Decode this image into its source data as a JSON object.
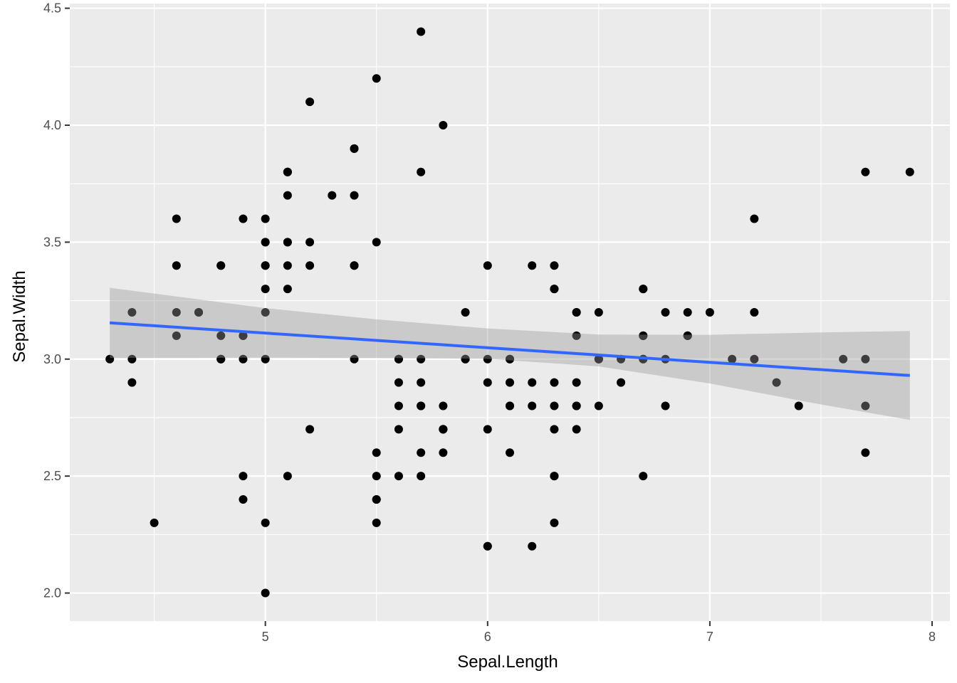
{
  "chart_data": {
    "type": "scatter",
    "title": "",
    "xlabel": "Sepal.Length",
    "ylabel": "Sepal.Width",
    "xlim": [
      4.12,
      8.08
    ],
    "ylim": [
      1.88,
      4.52
    ],
    "x_ticks": [
      5,
      6,
      7,
      8
    ],
    "x_tick_labels": [
      "5",
      "6",
      "7",
      "8"
    ],
    "y_ticks": [
      2.0,
      2.5,
      3.0,
      3.5,
      4.0,
      4.5
    ],
    "y_tick_labels": [
      "2.0",
      "2.5",
      "3.0",
      "3.5",
      "4.0",
      "4.5"
    ],
    "grid": true,
    "legend": "none",
    "colors": {
      "panel": "#ebebeb",
      "grid": "#ffffff",
      "points": "#000000",
      "fit_line": "#3366ff",
      "confidence_band": "#999999"
    },
    "points": [
      [
        5.1,
        3.5
      ],
      [
        4.9,
        3.0
      ],
      [
        4.7,
        3.2
      ],
      [
        4.6,
        3.1
      ],
      [
        5.0,
        3.6
      ],
      [
        5.4,
        3.9
      ],
      [
        4.6,
        3.4
      ],
      [
        5.0,
        3.4
      ],
      [
        4.4,
        2.9
      ],
      [
        4.9,
        3.1
      ],
      [
        5.4,
        3.7
      ],
      [
        4.8,
        3.4
      ],
      [
        4.8,
        3.0
      ],
      [
        4.3,
        3.0
      ],
      [
        5.8,
        4.0
      ],
      [
        5.7,
        4.4
      ],
      [
        5.4,
        3.9
      ],
      [
        5.1,
        3.5
      ],
      [
        5.7,
        3.8
      ],
      [
        5.1,
        3.8
      ],
      [
        5.4,
        3.4
      ],
      [
        5.1,
        3.7
      ],
      [
        4.6,
        3.6
      ],
      [
        5.1,
        3.3
      ],
      [
        4.8,
        3.4
      ],
      [
        5.0,
        3.0
      ],
      [
        5.0,
        3.4
      ],
      [
        5.2,
        3.5
      ],
      [
        5.2,
        3.4
      ],
      [
        4.7,
        3.2
      ],
      [
        4.8,
        3.1
      ],
      [
        5.4,
        3.4
      ],
      [
        5.2,
        4.1
      ],
      [
        5.5,
        4.2
      ],
      [
        4.9,
        3.1
      ],
      [
        5.0,
        3.2
      ],
      [
        5.5,
        3.5
      ],
      [
        4.9,
        3.6
      ],
      [
        4.4,
        3.0
      ],
      [
        5.1,
        3.4
      ],
      [
        5.0,
        3.5
      ],
      [
        4.5,
        2.3
      ],
      [
        4.4,
        3.2
      ],
      [
        5.0,
        3.5
      ],
      [
        5.1,
        3.8
      ],
      [
        4.8,
        3.0
      ],
      [
        5.1,
        3.8
      ],
      [
        4.6,
        3.2
      ],
      [
        5.3,
        3.7
      ],
      [
        5.0,
        3.3
      ],
      [
        7.0,
        3.2
      ],
      [
        6.4,
        3.2
      ],
      [
        6.9,
        3.1
      ],
      [
        5.5,
        2.3
      ],
      [
        6.5,
        2.8
      ],
      [
        5.7,
        2.8
      ],
      [
        6.3,
        3.3
      ],
      [
        4.9,
        2.4
      ],
      [
        6.6,
        2.9
      ],
      [
        5.2,
        2.7
      ],
      [
        5.0,
        2.0
      ],
      [
        5.9,
        3.0
      ],
      [
        6.0,
        2.2
      ],
      [
        6.1,
        2.9
      ],
      [
        5.6,
        2.9
      ],
      [
        6.7,
        3.1
      ],
      [
        5.6,
        3.0
      ],
      [
        5.8,
        2.7
      ],
      [
        6.2,
        2.2
      ],
      [
        5.6,
        2.5
      ],
      [
        5.9,
        3.2
      ],
      [
        6.1,
        2.8
      ],
      [
        6.3,
        2.5
      ],
      [
        6.1,
        2.8
      ],
      [
        6.4,
        2.9
      ],
      [
        6.6,
        3.0
      ],
      [
        6.8,
        2.8
      ],
      [
        6.7,
        3.0
      ],
      [
        6.0,
        2.9
      ],
      [
        5.7,
        2.6
      ],
      [
        5.5,
        2.4
      ],
      [
        5.5,
        2.4
      ],
      [
        5.8,
        2.7
      ],
      [
        6.0,
        2.7
      ],
      [
        5.4,
        3.0
      ],
      [
        6.0,
        3.4
      ],
      [
        6.7,
        3.1
      ],
      [
        6.3,
        2.3
      ],
      [
        5.6,
        3.0
      ],
      [
        5.5,
        2.5
      ],
      [
        5.5,
        2.6
      ],
      [
        6.1,
        3.0
      ],
      [
        5.8,
        2.6
      ],
      [
        5.0,
        2.3
      ],
      [
        5.6,
        2.7
      ],
      [
        5.7,
        3.0
      ],
      [
        5.7,
        2.9
      ],
      [
        6.2,
        2.9
      ],
      [
        5.1,
        2.5
      ],
      [
        5.7,
        2.8
      ],
      [
        6.3,
        3.3
      ],
      [
        5.8,
        2.7
      ],
      [
        7.1,
        3.0
      ],
      [
        6.3,
        2.9
      ],
      [
        6.5,
        3.0
      ],
      [
        7.6,
        3.0
      ],
      [
        4.9,
        2.5
      ],
      [
        7.3,
        2.9
      ],
      [
        6.7,
        2.5
      ],
      [
        7.2,
        3.6
      ],
      [
        6.5,
        3.2
      ],
      [
        6.4,
        2.7
      ],
      [
        6.8,
        3.0
      ],
      [
        5.7,
        2.5
      ],
      [
        5.8,
        2.8
      ],
      [
        6.4,
        3.2
      ],
      [
        6.5,
        3.0
      ],
      [
        7.7,
        3.8
      ],
      [
        7.7,
        2.6
      ],
      [
        6.0,
        2.2
      ],
      [
        6.9,
        3.2
      ],
      [
        5.6,
        2.8
      ],
      [
        7.7,
        2.8
      ],
      [
        6.3,
        2.7
      ],
      [
        6.7,
        3.3
      ],
      [
        7.2,
        3.2
      ],
      [
        6.2,
        2.8
      ],
      [
        6.1,
        3.0
      ],
      [
        6.4,
        2.8
      ],
      [
        7.2,
        3.0
      ],
      [
        7.4,
        2.8
      ],
      [
        7.9,
        3.8
      ],
      [
        6.4,
        2.8
      ],
      [
        6.3,
        2.8
      ],
      [
        6.1,
        2.6
      ],
      [
        7.7,
        3.0
      ],
      [
        6.3,
        3.4
      ],
      [
        6.4,
        3.1
      ],
      [
        6.0,
        3.0
      ],
      [
        6.9,
        3.1
      ],
      [
        6.7,
        3.1
      ],
      [
        6.9,
        3.1
      ],
      [
        5.8,
        2.7
      ],
      [
        6.8,
        3.2
      ],
      [
        6.7,
        3.3
      ],
      [
        6.7,
        3.0
      ],
      [
        6.3,
        2.5
      ],
      [
        6.5,
        3.0
      ],
      [
        6.2,
        3.4
      ],
      [
        5.9,
        3.0
      ]
    ],
    "fit_line": {
      "x": [
        4.3,
        7.9
      ],
      "y": [
        3.155,
        2.93
      ]
    },
    "confidence_band": {
      "x": [
        4.3,
        5.0,
        5.5,
        6.0,
        6.5,
        7.0,
        7.5,
        7.9
      ],
      "upper": [
        3.305,
        3.218,
        3.17,
        3.131,
        3.105,
        3.104,
        3.114,
        3.12
      ],
      "lower": [
        3.005,
        3.006,
        3.005,
        3.001,
        2.969,
        2.896,
        2.806,
        2.74
      ]
    }
  }
}
